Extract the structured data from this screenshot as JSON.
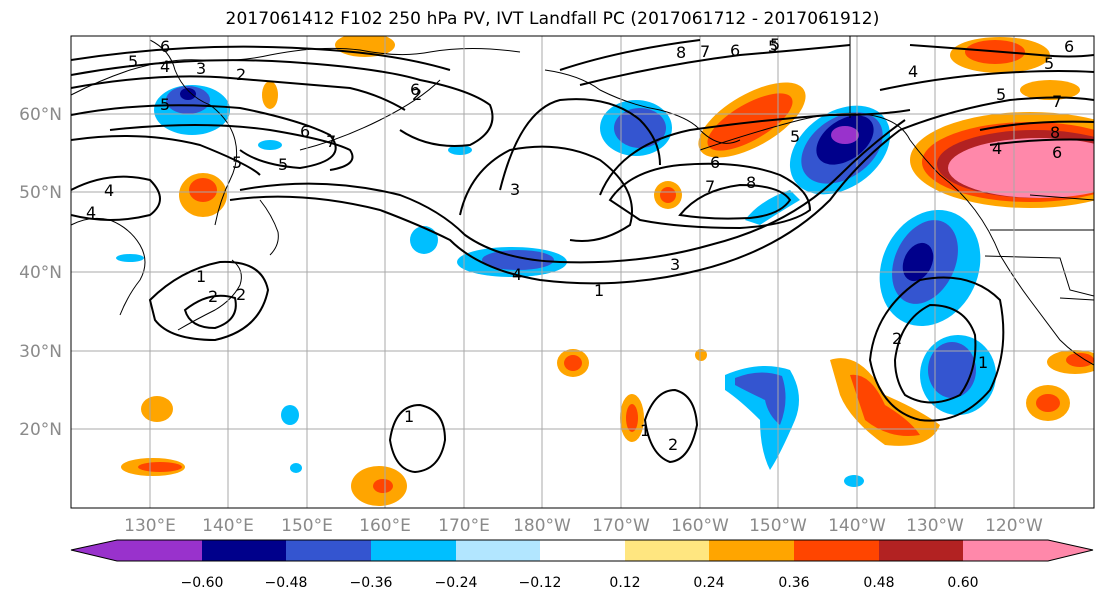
{
  "title": "2017061412 F102 250 hPa PV, IVT Landfall PC (2017061712 - 2017061912)",
  "map": {
    "lat_labels": [
      "60°N",
      "50°N",
      "40°N",
      "30°N",
      "20°N"
    ],
    "lon_labels": [
      "130°E",
      "140°E",
      "150°E",
      "160°E",
      "170°E",
      "180°W",
      "170°W",
      "160°W",
      "150°W",
      "140°W",
      "130°W",
      "120°W"
    ],
    "contour_labels": [
      "6",
      "5",
      "4",
      "3",
      "2",
      "8",
      "7",
      "6",
      "5",
      "6",
      "5",
      "4",
      "3",
      "2",
      "6",
      "7",
      "5",
      "5",
      "4",
      "3",
      "1",
      "4",
      "7",
      "8",
      "6",
      "5",
      "1",
      "2",
      "1",
      "2",
      "1",
      "2",
      "1",
      "5",
      "4",
      "2",
      "7",
      "5",
      "8",
      "6",
      "4",
      "6",
      "5"
    ]
  },
  "colorbar": {
    "tick_labels": [
      "−0.60",
      "−0.48",
      "−0.36",
      "−0.24",
      "−0.12",
      "0.12",
      "0.24",
      "0.36",
      "0.48",
      "0.60"
    ],
    "colors": {
      "below": "#9932cc",
      "n60": "#00008b",
      "n48": "#3455d0",
      "n36": "#00bfff",
      "n24": "#b2e6ff",
      "zero": "#ffffff",
      "p12": "#ffe680",
      "p24": "#ffa500",
      "p36": "#ff4500",
      "p48": "#b22222",
      "above": "#ff88aa"
    }
  }
}
